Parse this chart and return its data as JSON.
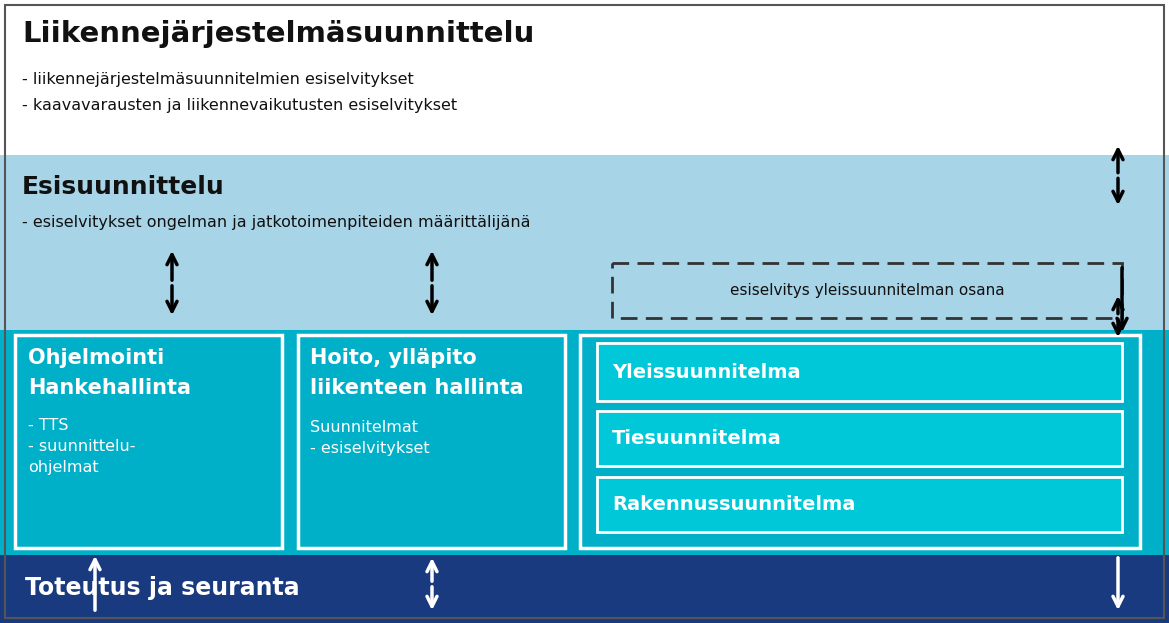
{
  "bg_white": "#ffffff",
  "bg_light_blue": "#a8d4e8",
  "bg_medium_blue": "#00b0c8",
  "bg_dark_blue": "#1a3a80",
  "box_teal": "#00b0c8",
  "box_inner": "#00c8d8",
  "border_white": "#ffffff",
  "text_black": "#111111",
  "text_white": "#ffffff",
  "dashed_border": "#333333",
  "title_liikenne": "Liikennejärjestelmäsuunnittelu",
  "bullet_liikenne1": "- liikennejärjestelmäsuunnitelmien esiselvitykset",
  "bullet_liikenne2": "- kaavavarausten ja liikennevaikutusten esiselvitykset",
  "title_esi": "Esisuunnittelu",
  "bullet_esi": "- esiselvitykset ongelman ja jatkotoimenpiteiden määrittälijänä",
  "dashed_label": "esiselvitys yleissuunnitelman osana",
  "box1_line1": "Ohjelmointi",
  "box1_line2": "Hankehallinta",
  "box1_sub": "- TTS\n- suunnittelu-\nohjelmat",
  "box2_line1": "Hoito, ylläpito",
  "box2_line2": "liikenteen hallinta",
  "box2_sub": "Suunnitelmat\n- esiselvitykset",
  "box3a": "Yleissuunnitelma",
  "box3b": "Tiesuunnitelma",
  "box3c": "Rakennussuunnitelma",
  "bottom_title": "Toteutus ja seuranta",
  "fig_width": 11.69,
  "fig_height": 6.23
}
